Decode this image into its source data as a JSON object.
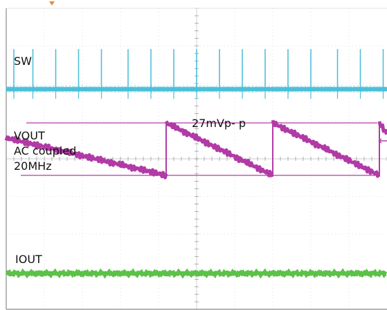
{
  "chart_data": {
    "type": "line",
    "title": "",
    "grid": true,
    "colors": {
      "grid": "#d8d8d8",
      "grid_dots": "#9a9a9a",
      "frame": "#888888",
      "trigger_marker": "#e8883a",
      "sw": "#4dbfd8",
      "vout": "#b23aa6",
      "iout": "#5cc148"
    },
    "divisions": {
      "horizontal": 10,
      "vertical": 8
    },
    "labels": {
      "sw": "SW",
      "vout_line1": "VOUT",
      "vout_line2": "AC coupled",
      "vout_line3": "20MHz",
      "iout": "IOUT",
      "ripple": "27mVp- p"
    },
    "series": [
      {
        "name": "SW",
        "kind": "spike_train",
        "spike_x_divisions": [
          0.2,
          0.7,
          1.3,
          1.9,
          2.5,
          3.2,
          3.8,
          4.4,
          5.0,
          5.6,
          6.2,
          6.8,
          7.4,
          8.0,
          8.7,
          9.3,
          9.9
        ]
      },
      {
        "name": "VOUT",
        "kind": "sawtooth",
        "reset_x_divisions": [
          4.2,
          7.0,
          9.8
        ],
        "peak_to_peak": "27mVp- p"
      },
      {
        "name": "IOUT",
        "kind": "flat"
      }
    ]
  }
}
